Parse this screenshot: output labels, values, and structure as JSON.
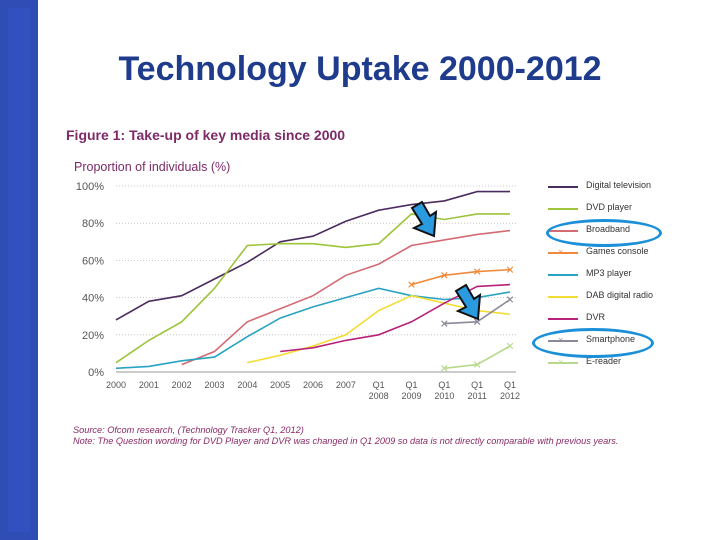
{
  "slide": {
    "title": "Technology Uptake 2000-2012"
  },
  "chart_data": {
    "type": "line",
    "title": "Figure 1: Take-up of key media since 2000",
    "ylabel": "Proportion of individuals (%)",
    "xlabel": "",
    "ylim": [
      0,
      100
    ],
    "y_ticks": [
      "0%",
      "20%",
      "40%",
      "60%",
      "80%",
      "100%"
    ],
    "y_tick_values": [
      0,
      20,
      40,
      60,
      80,
      100
    ],
    "categories": [
      [
        "2000"
      ],
      [
        "2001"
      ],
      [
        "2002"
      ],
      [
        "2003"
      ],
      [
        "2004"
      ],
      [
        "2005"
      ],
      [
        "2006"
      ],
      [
        "2007"
      ],
      [
        "Q1",
        "2008"
      ],
      [
        "Q1",
        "2009"
      ],
      [
        "Q1",
        "2010"
      ],
      [
        "Q1",
        "2011"
      ],
      [
        "Q1",
        "2012"
      ]
    ],
    "grid": "horizontal dotted",
    "legend_position": "right",
    "series": [
      {
        "name": "Digital television",
        "color": "#4b2c5e",
        "marker": "",
        "values": [
          28,
          38,
          41,
          50,
          59,
          70,
          73,
          81,
          87,
          90,
          92,
          97,
          97
        ]
      },
      {
        "name": "DVD player",
        "color": "#9dc43a",
        "marker": "",
        "values": [
          5,
          17,
          27,
          45,
          68,
          69,
          69,
          67,
          69,
          85,
          82,
          85,
          85
        ]
      },
      {
        "name": "Broadband",
        "color": "#d46b73",
        "marker": "",
        "values": [
          null,
          null,
          4,
          11,
          27,
          34,
          41,
          52,
          58,
          68,
          71,
          74,
          76
        ]
      },
      {
        "name": "Games console",
        "color": "#f08a3a",
        "marker": "x",
        "values": [
          null,
          null,
          null,
          null,
          null,
          null,
          null,
          null,
          null,
          47,
          52,
          54,
          55
        ]
      },
      {
        "name": "MP3 player",
        "color": "#29a3c2",
        "marker": "",
        "values": [
          2,
          3,
          6,
          8,
          19,
          29,
          35,
          40,
          45,
          41,
          39,
          40,
          43
        ]
      },
      {
        "name": "DAB digital radio",
        "color": "#f5dc34",
        "marker": "",
        "values": [
          null,
          null,
          null,
          null,
          5,
          9,
          14,
          20,
          33,
          41,
          37,
          33,
          31
        ]
      },
      {
        "name": "DVR",
        "color": "#b8227a",
        "marker": "",
        "values": [
          null,
          null,
          null,
          null,
          null,
          11,
          13,
          17,
          20,
          27,
          37,
          46,
          47
        ]
      },
      {
        "name": "Smartphone",
        "color": "#8a8a99",
        "marker": "x",
        "values": [
          null,
          null,
          null,
          null,
          null,
          null,
          null,
          null,
          null,
          null,
          26,
          27,
          39
        ]
      },
      {
        "name": "E-reader",
        "color": "#b7d98a",
        "marker": "x",
        "values": [
          null,
          null,
          null,
          null,
          null,
          null,
          null,
          null,
          null,
          null,
          2,
          4,
          14
        ]
      }
    ],
    "annotations": [
      "Source: Ofcom research, (Technology Tracker Q1, 2012)",
      "Note: The Question wording for DVD Player and DVR was changed in Q1 2009 so data is not directly comparable with previous years."
    ]
  },
  "overlays": {
    "arrow_color": "#1b8fd8",
    "highlighted_legend_entries": [
      "Broadband",
      "Smartphone"
    ]
  }
}
